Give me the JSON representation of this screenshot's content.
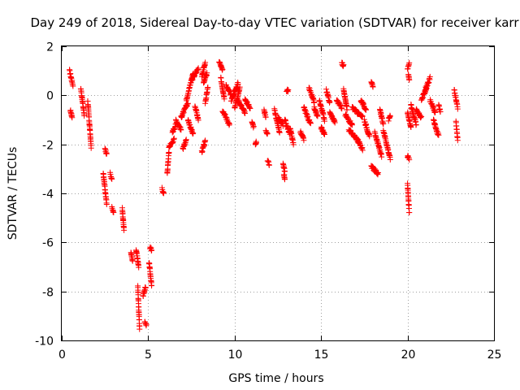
{
  "chart_data": {
    "type": "scatter",
    "title": "Day 249 of 2018, Sidereal Day-to-day VTEC variation (SDTVAR) for receiver karr",
    "xlabel": "GPS time / hours",
    "ylabel": "SDTVAR / TECUs",
    "xlim": [
      0,
      25
    ],
    "ylim": [
      -10,
      2
    ],
    "xticks": [
      0,
      5,
      10,
      15,
      20,
      25
    ],
    "yticks": [
      -10,
      -8,
      -6,
      -4,
      -2,
      0,
      2
    ],
    "xtick_labels": [
      "0",
      "5",
      "10",
      "15",
      "20",
      "25"
    ],
    "ytick_labels": [
      "-10",
      "-8",
      "-6",
      "-4",
      "-2",
      "0",
      "2"
    ],
    "grid": true,
    "marker": "+",
    "color": "#ff0000",
    "tracks": [
      [
        0.45,
        1.0,
        0.65,
        0.4
      ],
      [
        0.5,
        -0.6,
        0.6,
        -0.9
      ],
      [
        1.1,
        0.3,
        1.3,
        -0.8
      ],
      [
        1.5,
        -0.2,
        1.7,
        -2.1
      ],
      [
        2.5,
        -2.2,
        2.6,
        -2.4
      ],
      [
        2.4,
        -3.2,
        2.6,
        -4.4
      ],
      [
        2.8,
        -3.2,
        2.9,
        -3.4
      ],
      [
        2.9,
        -4.6,
        3.0,
        -4.8
      ],
      [
        3.5,
        -4.6,
        3.6,
        -5.5
      ],
      [
        4.0,
        -6.4,
        4.1,
        -6.8
      ],
      [
        4.3,
        -6.3,
        4.45,
        -7.0
      ],
      [
        4.4,
        -7.8,
        4.5,
        -9.5
      ],
      [
        4.7,
        -8.2,
        4.85,
        -7.8
      ],
      [
        4.8,
        -9.2,
        4.9,
        -9.4
      ],
      [
        5.1,
        -6.2,
        5.2,
        -6.3
      ],
      [
        5.05,
        -6.8,
        5.2,
        -7.8
      ],
      [
        5.8,
        -3.8,
        5.9,
        -4.0
      ],
      [
        6.1,
        -3.2,
        6.2,
        -2.3
      ],
      [
        6.2,
        -2.1,
        6.5,
        -1.8
      ],
      [
        6.4,
        -1.5,
        6.6,
        -1.2
      ],
      [
        6.6,
        -1.0,
        6.9,
        -1.4
      ],
      [
        6.9,
        -0.9,
        7.3,
        -0.3
      ],
      [
        7.0,
        -2.2,
        7.2,
        -1.8
      ],
      [
        7.2,
        -0.2,
        7.6,
        0.9
      ],
      [
        7.3,
        -1.0,
        7.6,
        -1.6
      ],
      [
        7.5,
        0.6,
        7.9,
        1.1
      ],
      [
        7.7,
        -0.4,
        7.9,
        -1.0
      ],
      [
        8.1,
        -2.3,
        8.3,
        -1.9
      ],
      [
        8.1,
        0.8,
        8.3,
        1.3
      ],
      [
        8.2,
        0.5,
        8.4,
        0.9
      ],
      [
        8.3,
        -0.3,
        8.45,
        0.3
      ],
      [
        9.1,
        1.4,
        9.3,
        1.0
      ],
      [
        9.2,
        0.7,
        9.4,
        -0.1
      ],
      [
        9.3,
        -0.6,
        9.7,
        -1.2
      ],
      [
        9.5,
        0.4,
        9.8,
        0.0
      ],
      [
        9.8,
        -0.2,
        10.2,
        0.5
      ],
      [
        10.0,
        -0.5,
        10.3,
        0.3
      ],
      [
        10.2,
        -0.2,
        10.6,
        -0.7
      ],
      [
        10.6,
        -0.2,
        10.9,
        -0.5
      ],
      [
        11.0,
        -1.1,
        11.1,
        -1.3
      ],
      [
        11.2,
        -2.0,
        11.25,
        -1.9
      ],
      [
        11.7,
        -0.6,
        11.8,
        -0.9
      ],
      [
        11.8,
        -1.4,
        11.9,
        -1.6
      ],
      [
        11.9,
        -2.7,
        12.0,
        -2.8
      ],
      [
        12.3,
        -0.6,
        12.6,
        -1.5
      ],
      [
        12.5,
        -0.9,
        12.8,
        -1.2
      ],
      [
        12.8,
        -2.8,
        12.9,
        -3.1
      ],
      [
        12.85,
        -3.2,
        12.9,
        -3.4
      ],
      [
        12.9,
        -1.0,
        13.2,
        -1.6
      ],
      [
        13.2,
        -1.3,
        13.4,
        -2.0
      ],
      [
        13.0,
        0.2,
        13.1,
        0.2
      ],
      [
        13.8,
        -1.5,
        14.0,
        -1.8
      ],
      [
        14.0,
        -0.5,
        14.4,
        -1.2
      ],
      [
        14.3,
        0.3,
        14.6,
        -0.3
      ],
      [
        14.6,
        -0.5,
        14.8,
        -0.9
      ],
      [
        14.9,
        -0.2,
        15.2,
        -1.0
      ],
      [
        15.0,
        -1.3,
        15.2,
        -1.6
      ],
      [
        15.3,
        0.2,
        15.5,
        -0.3
      ],
      [
        15.5,
        -0.7,
        15.8,
        -1.1
      ],
      [
        15.9,
        -0.2,
        16.2,
        -0.5
      ],
      [
        16.2,
        1.3,
        16.3,
        1.2
      ],
      [
        16.3,
        0.3,
        16.5,
        -0.6
      ],
      [
        16.4,
        -0.8,
        16.8,
        -1.2
      ],
      [
        16.6,
        -1.4,
        17.2,
        -1.9
      ],
      [
        16.8,
        -0.5,
        17.4,
        -0.9
      ],
      [
        17.0,
        -1.7,
        17.4,
        -2.2
      ],
      [
        17.3,
        -0.2,
        17.6,
        -0.6
      ],
      [
        17.5,
        -1.0,
        17.8,
        -1.7
      ],
      [
        17.9,
        0.5,
        18.0,
        0.4
      ],
      [
        17.9,
        -2.9,
        18.3,
        -3.2
      ],
      [
        18.1,
        -1.5,
        18.5,
        -2.5
      ],
      [
        18.4,
        -0.6,
        18.6,
        -1.2
      ],
      [
        18.6,
        -1.4,
        19.0,
        -2.6
      ],
      [
        18.9,
        -1.0,
        19.0,
        -0.8
      ],
      [
        20.0,
        1.1,
        20.1,
        1.3
      ],
      [
        20.05,
        0.9,
        20.1,
        0.6
      ],
      [
        20.0,
        -0.7,
        20.2,
        -1.3
      ],
      [
        20.0,
        -2.5,
        20.1,
        -2.6
      ],
      [
        20.0,
        -3.6,
        20.1,
        -4.8
      ],
      [
        20.2,
        -0.4,
        20.5,
        -1.2
      ],
      [
        20.5,
        -0.6,
        20.8,
        -0.9
      ],
      [
        20.8,
        -0.2,
        21.1,
        0.3
      ],
      [
        21.0,
        0.2,
        21.3,
        0.7
      ],
      [
        21.3,
        -0.2,
        21.6,
        -0.7
      ],
      [
        21.5,
        -1.0,
        21.7,
        -1.5
      ],
      [
        21.7,
        -1.5,
        21.8,
        -1.6
      ],
      [
        21.8,
        -0.4,
        21.9,
        -0.7
      ],
      [
        22.7,
        0.2,
        22.9,
        -0.5
      ],
      [
        22.8,
        -1.1,
        22.9,
        -1.8
      ]
    ]
  }
}
